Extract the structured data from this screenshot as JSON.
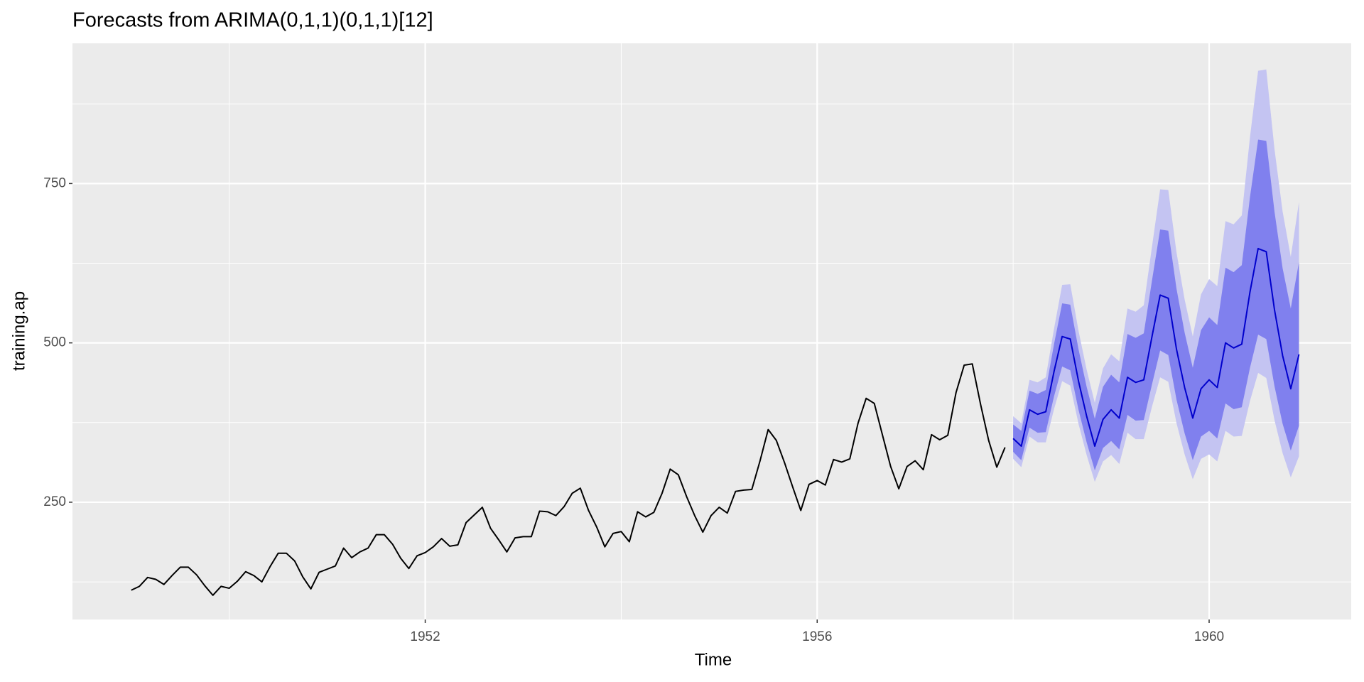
{
  "chart_data": {
    "type": "line",
    "title": "Forecasts from ARIMA(0,1,1)(0,1,1)[12]",
    "x_label": "Time",
    "y_label": "training.ap",
    "xlim": [
      1948.4,
      1961.45
    ],
    "xticks": [
      1952,
      1956,
      1960
    ],
    "ylim": [
      66,
      970
    ],
    "yticks": [
      250,
      500,
      750
    ],
    "grid": true,
    "panel_color": "#ebebeb",
    "series": [
      {
        "color": "#000000",
        "x": [
          1949,
          1949.083,
          1949.167,
          1949.25,
          1949.333,
          1949.417,
          1949.5,
          1949.583,
          1949.667,
          1949.75,
          1949.833,
          1949.917,
          1950,
          1950.083,
          1950.167,
          1950.25,
          1950.333,
          1950.417,
          1950.5,
          1950.583,
          1950.667,
          1950.75,
          1950.833,
          1950.917,
          1951,
          1951.083,
          1951.167,
          1951.25,
          1951.333,
          1951.417,
          1951.5,
          1951.583,
          1951.667,
          1951.75,
          1951.833,
          1951.917,
          1952,
          1952.083,
          1952.167,
          1952.25,
          1952.333,
          1952.417,
          1952.5,
          1952.583,
          1952.667,
          1952.75,
          1952.833,
          1952.917,
          1953,
          1953.083,
          1953.167,
          1953.25,
          1953.333,
          1953.417,
          1953.5,
          1953.583,
          1953.667,
          1953.75,
          1953.833,
          1953.917,
          1954,
          1954.083,
          1954.167,
          1954.25,
          1954.333,
          1954.417,
          1954.5,
          1954.583,
          1954.667,
          1954.75,
          1954.833,
          1954.917,
          1955,
          1955.083,
          1955.167,
          1955.25,
          1955.333,
          1955.417,
          1955.5,
          1955.583,
          1955.667,
          1955.75,
          1955.833,
          1955.917,
          1956,
          1956.083,
          1956.167,
          1956.25,
          1956.333,
          1956.417,
          1956.5,
          1956.583,
          1956.667,
          1956.75,
          1956.833,
          1956.917,
          1957,
          1957.083,
          1957.167,
          1957.25,
          1957.333,
          1957.417,
          1957.5,
          1957.583,
          1957.667,
          1957.75,
          1957.833,
          1957.917
        ],
        "values": [
          112,
          118,
          132,
          129,
          121,
          135,
          148,
          148,
          136,
          119,
          104,
          118,
          115,
          126,
          141,
          135,
          125,
          149,
          170,
          170,
          158,
          133,
          114,
          140,
          145,
          150,
          178,
          163,
          172,
          178,
          199,
          199,
          184,
          162,
          146,
          166,
          171,
          180,
          193,
          181,
          183,
          218,
          230,
          242,
          209,
          191,
          172,
          194,
          196,
          196,
          236,
          235,
          229,
          243,
          264,
          272,
          237,
          211,
          180,
          201,
          204,
          188,
          235,
          227,
          234,
          264,
          302,
          293,
          259,
          229,
          203,
          229,
          242,
          233,
          267,
          269,
          270,
          315,
          364,
          347,
          312,
          274,
          237,
          278,
          284,
          277,
          317,
          313,
          318,
          374,
          413,
          405,
          355,
          306,
          271,
          306,
          315,
          301,
          356,
          348,
          355,
          422,
          465,
          467,
          404,
          347,
          305,
          336
        ]
      },
      {
        "color": "#0000cc",
        "x": [
          1958,
          1958.083,
          1958.167,
          1958.25,
          1958.333,
          1958.417,
          1958.5,
          1958.583,
          1958.667,
          1958.75,
          1958.833,
          1958.917,
          1959,
          1959.083,
          1959.167,
          1959.25,
          1959.333,
          1959.417,
          1959.5,
          1959.583,
          1959.667,
          1959.75,
          1959.833,
          1959.917,
          1960,
          1960.083,
          1960.167,
          1960.25,
          1960.333,
          1960.417,
          1960.5,
          1960.583,
          1960.667,
          1960.75,
          1960.833,
          1960.917
        ],
        "values": [
          350,
          338,
          395,
          388,
          392,
          455,
          510,
          506,
          440,
          385,
          338,
          380,
          395,
          382,
          446,
          438,
          442,
          510,
          575,
          570,
          490,
          430,
          382,
          428,
          442,
          430,
          500,
          492,
          498,
          580,
          648,
          643,
          552,
          480,
          428,
          482
        ]
      }
    ],
    "bands": [
      {
        "color": "#c4c4f2",
        "lower": [
          318,
          305,
          353,
          344,
          344,
          396,
          440,
          433,
          373,
          324,
          282,
          314,
          324,
          310,
          359,
          349,
          349,
          400,
          446,
          439,
          374,
          325,
          286,
          318,
          325,
          314,
          362,
          353,
          354,
          409,
          453,
          445,
          379,
          327,
          289,
          322
        ],
        "upper": [
          385,
          374,
          442,
          438,
          446,
          522,
          591,
          592,
          519,
          458,
          406,
          460,
          482,
          471,
          554,
          549,
          559,
          651,
          741,
          740,
          642,
          568,
          510,
          576,
          600,
          589,
          691,
          686,
          700,
          823,
          927,
          929,
          804,
          706,
          635,
          721
        ]
      },
      {
        "color": "#8080ee",
        "lower": [
          329,
          316,
          367,
          359,
          360,
          416,
          463,
          457,
          395,
          344,
          300,
          335,
          346,
          333,
          387,
          378,
          379,
          435,
          488,
          481,
          411,
          358,
          316,
          353,
          362,
          350,
          405,
          396,
          399,
          461,
          513,
          506,
          432,
          373,
          331,
          370
        ],
        "upper": [
          372,
          362,
          425,
          420,
          426,
          498,
          562,
          560,
          490,
          431,
          381,
          431,
          450,
          438,
          514,
          508,
          515,
          598,
          678,
          676,
          585,
          516,
          461,
          520,
          540,
          528,
          618,
          611,
          622,
          729,
          819,
          817,
          706,
          617,
          554,
          627
        ]
      }
    ]
  }
}
